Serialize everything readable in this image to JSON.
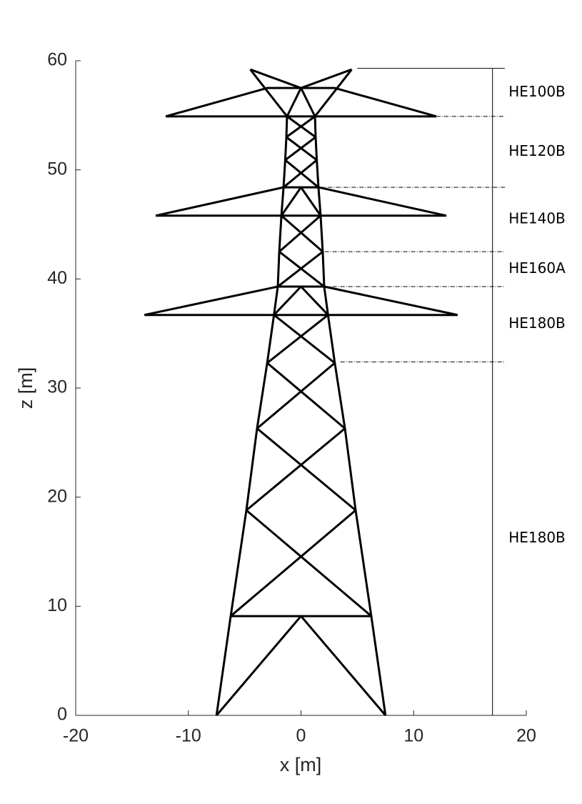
{
  "chart_data": {
    "type": "line",
    "xlabel": "x [m]",
    "ylabel": "z [m]",
    "xlim": [
      -20,
      20
    ],
    "xticks": [
      -20,
      -10,
      0,
      10,
      20
    ],
    "ylim": [
      0,
      60
    ],
    "yticks": [
      0,
      10,
      20,
      30,
      40,
      50,
      60
    ],
    "color": "#000000",
    "series": [
      {
        "x": [
          -7.5,
          -6.24,
          -4.85,
          -3.9,
          -3.0,
          -2.4,
          -2.06,
          -1.93,
          -1.74,
          -1.55,
          -1.4,
          -1.3,
          -1.24
        ],
        "values": [
          0,
          9.1,
          18.8,
          26.3,
          32.3,
          36.7,
          39.3,
          42.5,
          45.8,
          48.4,
          50.9,
          53.0,
          54.9
        ]
      },
      {
        "x": [
          7.5,
          6.24,
          4.85,
          3.9,
          3.0,
          2.4,
          2.06,
          1.93,
          1.74,
          1.55,
          1.4,
          1.3,
          1.24
        ],
        "values": [
          0,
          9.1,
          18.8,
          26.3,
          32.3,
          36.7,
          39.3,
          42.5,
          45.8,
          48.4,
          50.9,
          53.0,
          54.9
        ]
      },
      {
        "x": [
          -7.5,
          0,
          7.5
        ],
        "values": [
          0,
          9.1,
          0
        ]
      },
      {
        "x": [
          -6.24,
          6.24
        ],
        "values": [
          9.1,
          9.1
        ]
      },
      {
        "x": [
          -6.24,
          4.85
        ],
        "values": [
          9.1,
          18.8
        ]
      },
      {
        "x": [
          6.24,
          -4.85
        ],
        "values": [
          9.1,
          18.8
        ]
      },
      {
        "x": [
          -4.85,
          3.9
        ],
        "values": [
          18.8,
          26.3
        ]
      },
      {
        "x": [
          4.85,
          -3.9
        ],
        "values": [
          18.8,
          26.3
        ]
      },
      {
        "x": [
          -3.9,
          3.0
        ],
        "values": [
          26.3,
          32.3
        ]
      },
      {
        "x": [
          3.9,
          -3.0
        ],
        "values": [
          26.3,
          32.3
        ]
      },
      {
        "x": [
          -3.0,
          2.4
        ],
        "values": [
          32.3,
          36.7
        ]
      },
      {
        "x": [
          3.0,
          -2.4
        ],
        "values": [
          32.3,
          36.7
        ]
      },
      {
        "x": [
          -13.9,
          13.9
        ],
        "values": [
          36.7,
          36.7
        ]
      },
      {
        "x": [
          -13.9,
          -2.06,
          2.06,
          13.9
        ],
        "values": [
          36.7,
          39.3,
          39.3,
          36.7
        ]
      },
      {
        "x": [
          -2.4,
          0,
          2.4
        ],
        "values": [
          36.7,
          39.3,
          36.7
        ]
      },
      {
        "x": [
          -2.06,
          1.93
        ],
        "values": [
          39.3,
          42.5
        ]
      },
      {
        "x": [
          2.06,
          -1.93
        ],
        "values": [
          39.3,
          42.5
        ]
      },
      {
        "x": [
          -1.93,
          1.74
        ],
        "values": [
          42.5,
          45.8
        ]
      },
      {
        "x": [
          1.93,
          -1.74
        ],
        "values": [
          42.5,
          45.8
        ]
      },
      {
        "x": [
          -12.9,
          12.9
        ],
        "values": [
          45.8,
          45.8
        ]
      },
      {
        "x": [
          -12.9,
          -1.55,
          1.55,
          12.9
        ],
        "values": [
          45.8,
          48.4,
          48.4,
          45.8
        ]
      },
      {
        "x": [
          -1.74,
          0,
          1.74
        ],
        "values": [
          45.8,
          48.4,
          45.8
        ]
      },
      {
        "x": [
          -1.55,
          1.4
        ],
        "values": [
          48.4,
          50.9
        ]
      },
      {
        "x": [
          1.55,
          -1.4
        ],
        "values": [
          48.4,
          50.9
        ]
      },
      {
        "x": [
          -1.4,
          1.3
        ],
        "values": [
          50.9,
          53.0
        ]
      },
      {
        "x": [
          1.4,
          -1.3
        ],
        "values": [
          50.9,
          53.0
        ]
      },
      {
        "x": [
          -1.3,
          1.24
        ],
        "values": [
          53.0,
          54.9
        ]
      },
      {
        "x": [
          1.3,
          -1.24
        ],
        "values": [
          53.0,
          54.9
        ]
      },
      {
        "x": [
          -12.0,
          12.0
        ],
        "values": [
          54.9,
          54.9
        ]
      },
      {
        "x": [
          -12.0,
          -3.0,
          3.0,
          12.0
        ],
        "values": [
          54.9,
          57.5,
          57.5,
          54.9
        ]
      },
      {
        "x": [
          -1.24,
          0,
          1.24
        ],
        "values": [
          54.9,
          57.5,
          54.9
        ]
      },
      {
        "x": [
          -4.5,
          0,
          4.5
        ],
        "values": [
          59.2,
          57.5,
          59.2
        ]
      },
      {
        "x": [
          -4.5,
          -1.24
        ],
        "values": [
          59.2,
          54.9
        ]
      },
      {
        "x": [
          4.5,
          1.24
        ],
        "values": [
          59.2,
          54.9
        ]
      }
    ],
    "dimension_x": 17.0,
    "dimension_end": 18.1,
    "sections": [
      {
        "label": "HE100B",
        "top": 59.3,
        "bottom": 54.9,
        "line_start": 5.0
      },
      {
        "label": "HE120B",
        "top": 54.9,
        "bottom": 48.4,
        "line_start": 12.0
      },
      {
        "label": "HE140B",
        "top": 48.4,
        "bottom": 42.5,
        "line_start": 1.7
      },
      {
        "label": "HE160A",
        "top": 42.5,
        "bottom": 39.3,
        "line_start": 2.1
      },
      {
        "label": "HE180B",
        "top": 39.3,
        "bottom": 32.4,
        "line_start": 2.1
      },
      {
        "label": "HE180B",
        "top": 32.4,
        "bottom": 0,
        "line_start": 3.5
      }
    ]
  }
}
